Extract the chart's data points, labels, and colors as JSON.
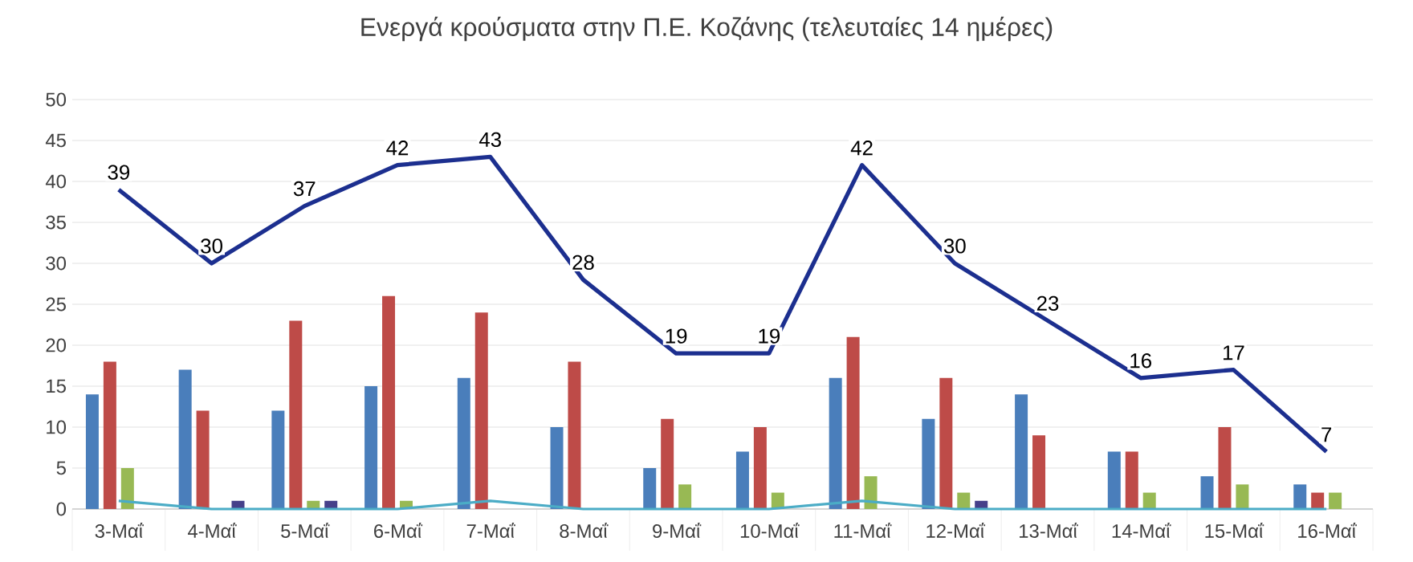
{
  "chart_data": {
    "type": "bar",
    "title": "Ενεργά κρούσματα στην Π.Ε. Κοζάνης (τελευταίες 14 ημέρες)",
    "categories": [
      "3-Μαΐ",
      "4-Μαΐ",
      "5-Μαΐ",
      "6-Μαΐ",
      "7-Μαΐ",
      "8-Μαΐ",
      "9-Μαΐ",
      "10-Μαΐ",
      "11-Μαΐ",
      "12-Μαΐ",
      "13-Μαΐ",
      "14-Μαΐ",
      "15-Μαΐ",
      "16-Μαΐ"
    ],
    "series": [
      {
        "color": "#4a7ebb",
        "values": [
          14,
          17,
          12,
          15,
          16,
          10,
          5,
          7,
          16,
          11,
          14,
          7,
          4,
          3
        ]
      },
      {
        "color": "#be4b48",
        "values": [
          18,
          12,
          23,
          26,
          24,
          18,
          11,
          10,
          21,
          16,
          9,
          7,
          10,
          2
        ]
      },
      {
        "color": "#98b954",
        "values": [
          5,
          0,
          1,
          1,
          0,
          0,
          3,
          2,
          4,
          2,
          0,
          2,
          3,
          2
        ]
      },
      {
        "color": "#46408a",
        "values": [
          0,
          1,
          1,
          0,
          0,
          0,
          0,
          0,
          0,
          1,
          0,
          0,
          0,
          0
        ]
      },
      {
        "type": "line",
        "color": "#4bacc6",
        "values": [
          1,
          0,
          0,
          0,
          1,
          0,
          0,
          0,
          1,
          0,
          0,
          0,
          0,
          0
        ]
      },
      {
        "type": "line",
        "color": "#1c2f8f",
        "values": [
          39,
          30,
          37,
          42,
          43,
          28,
          19,
          19,
          42,
          30,
          23,
          16,
          17,
          7
        ],
        "value_labels": [
          "39",
          "30",
          "37",
          "42",
          "43",
          "28",
          "19",
          "19",
          "42",
          "30",
          "23",
          "16",
          "17",
          "7"
        ]
      }
    ],
    "ylim": [
      0,
      50
    ],
    "yticks": [
      0,
      5,
      10,
      15,
      20,
      25,
      30,
      35,
      40,
      45,
      50
    ],
    "grid": "y"
  }
}
